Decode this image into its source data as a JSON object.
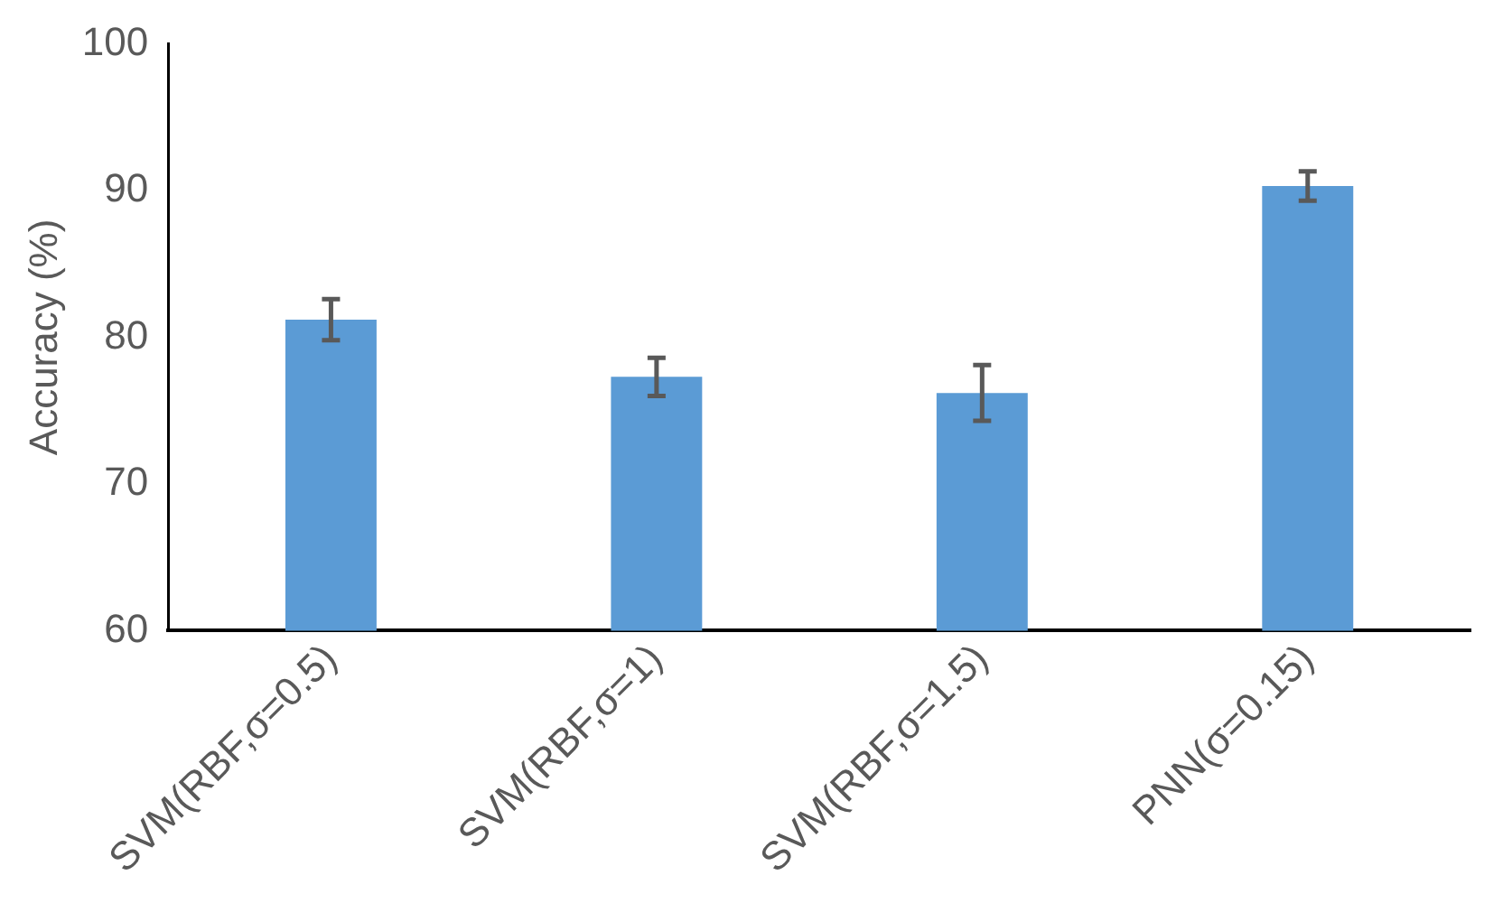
{
  "chart_data": {
    "type": "bar",
    "ylabel": "Accuracy (%)",
    "categories": [
      "SVM(RBF,σ=0.5)",
      "SVM(RBF,σ=1)",
      "SVM(RBF,σ=1.5)",
      "PNN(σ=0.15)"
    ],
    "values": [
      81.2,
      77.3,
      76.2,
      90.3
    ],
    "errors": [
      1.4,
      1.3,
      1.9,
      1.0
    ],
    "color": "#5b9bd5",
    "ylim": [
      60,
      100
    ],
    "yticks": [
      60,
      70,
      80,
      90,
      100
    ],
    "grid": false,
    "legend": false
  }
}
